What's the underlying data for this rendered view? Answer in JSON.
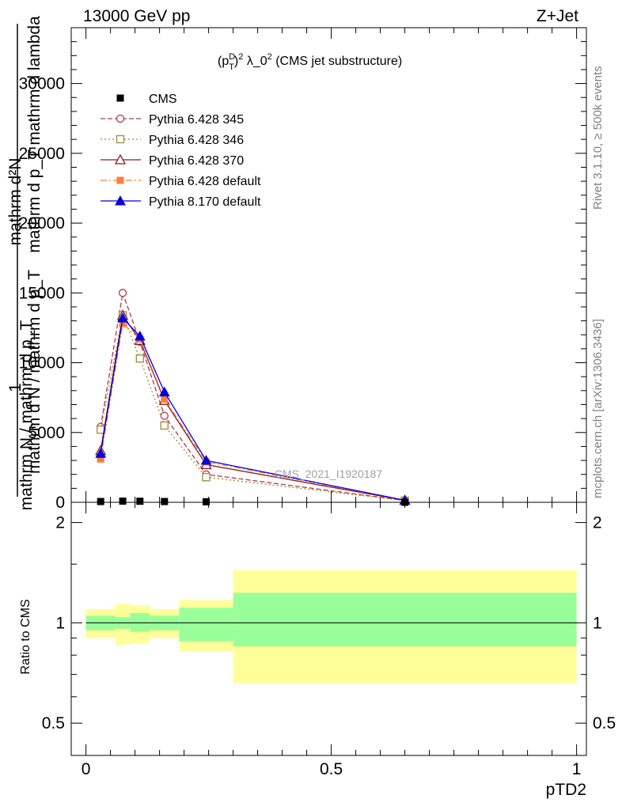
{
  "header": {
    "energy_label": "13000 GeV pp",
    "process_label": "Z+Jet"
  },
  "side_texts": {
    "rivet": "Rivet 3.1.10, ≥ 500k events",
    "mcplots": "mcplots.cern.ch [arXiv:1306.3436]"
  },
  "watermark": "CMS_2021_I1920187",
  "chart_data": {
    "type": "line",
    "title": {
      "p": "(p",
      "sup1": "D",
      "sub1": "T",
      "sup2": "2",
      "mid": " λ_0",
      "sup3": "2",
      "rest": " (CMS jet substructure)"
    },
    "ylabel": {
      "numerator": "mathrm d²N",
      "line1": "mathrm d p_T mathrm d lambda",
      "line2": "mathrm d N / mathrm d p_T",
      "one": "1",
      "denominator": "mathrm N / mathrm d p_T"
    },
    "xlabel": "pTD2",
    "ratio_ylabel": "Ratio to CMS",
    "xlim": [
      -0.03,
      1.02
    ],
    "ylim": [
      0,
      34000
    ],
    "ratio_ylim": [
      0.4,
      2.3
    ],
    "x_major_ticks": [
      0,
      0.5,
      1
    ],
    "x_tick_labels": [
      "0",
      "0.5",
      "1"
    ],
    "y_major_ticks": [
      0,
      5000,
      10000,
      15000,
      20000,
      25000,
      30000
    ],
    "y_tick_labels": [
      "0",
      "5000",
      "10000",
      "15000",
      "20000",
      "25000",
      "30000"
    ],
    "ratio_major_ticks": [
      0.5,
      1,
      2
    ],
    "ratio_tick_labels": [
      "0.5",
      "1",
      "2"
    ],
    "bins": [
      {
        "lo": 0.0,
        "hi": 0.06,
        "x": 0.03
      },
      {
        "lo": 0.06,
        "hi": 0.09,
        "x": 0.075
      },
      {
        "lo": 0.09,
        "hi": 0.13,
        "x": 0.11
      },
      {
        "lo": 0.13,
        "hi": 0.19,
        "x": 0.16
      },
      {
        "lo": 0.19,
        "hi": 0.3,
        "x": 0.245
      },
      {
        "lo": 0.3,
        "hi": 1.0,
        "x": 0.65
      }
    ],
    "cms": {
      "name": "CMS",
      "color": "#000000",
      "values": [
        55,
        85,
        75,
        55,
        40,
        1
      ]
    },
    "ratio_bands": {
      "inner_color": "#99ff99",
      "outer_color": "#ffff99",
      "inner": [
        [
          0.95,
          1.05
        ],
        [
          0.96,
          1.04
        ],
        [
          0.94,
          1.07
        ],
        [
          0.95,
          1.05
        ],
        [
          0.88,
          1.11
        ],
        [
          0.85,
          1.23
        ]
      ],
      "outer": [
        [
          0.9,
          1.1
        ],
        [
          0.86,
          1.14
        ],
        [
          0.87,
          1.13
        ],
        [
          0.9,
          1.1
        ],
        [
          0.82,
          1.17
        ],
        [
          0.66,
          1.44
        ]
      ]
    },
    "series": [
      {
        "name": "Pythia 6.428 345",
        "color": "#b03a48",
        "dash": "6,3",
        "marker": "circle-open",
        "x": [
          0.03,
          0.075,
          0.11,
          0.16,
          0.245,
          0.65
        ],
        "values": [
          5400,
          15000,
          11500,
          6200,
          2000,
          130
        ]
      },
      {
        "name": "Pythia 6.428 346",
        "color": "#9b8a3a",
        "dash": "2,3",
        "marker": "square-open",
        "x": [
          0.03,
          0.075,
          0.11,
          0.16,
          0.245,
          0.65
        ],
        "values": [
          5200,
          13400,
          10300,
          5500,
          1800,
          120
        ]
      },
      {
        "name": "Pythia 6.428 370",
        "color": "#8b1a1a",
        "dash": "",
        "marker": "triangle-open",
        "x": [
          0.03,
          0.075,
          0.11,
          0.16,
          0.245,
          0.65
        ],
        "values": [
          3700,
          13400,
          11600,
          7300,
          2700,
          140
        ]
      },
      {
        "name": "Pythia 6.428 default",
        "color": "#ff7f3a",
        "dash": "8,3,2,3",
        "marker": "square-filled",
        "x": [
          0.03,
          0.075,
          0.11,
          0.16,
          0.245,
          0.65
        ],
        "values": [
          3100,
          12800,
          11700,
          7400,
          2900,
          150
        ]
      },
      {
        "name": "Pythia 8.170 default",
        "color": "#0000dd",
        "dash": "",
        "marker": "triangle-filled",
        "x": [
          0.03,
          0.075,
          0.11,
          0.16,
          0.245,
          0.65
        ],
        "values": [
          3500,
          13200,
          11900,
          7900,
          3000,
          150
        ]
      }
    ]
  }
}
